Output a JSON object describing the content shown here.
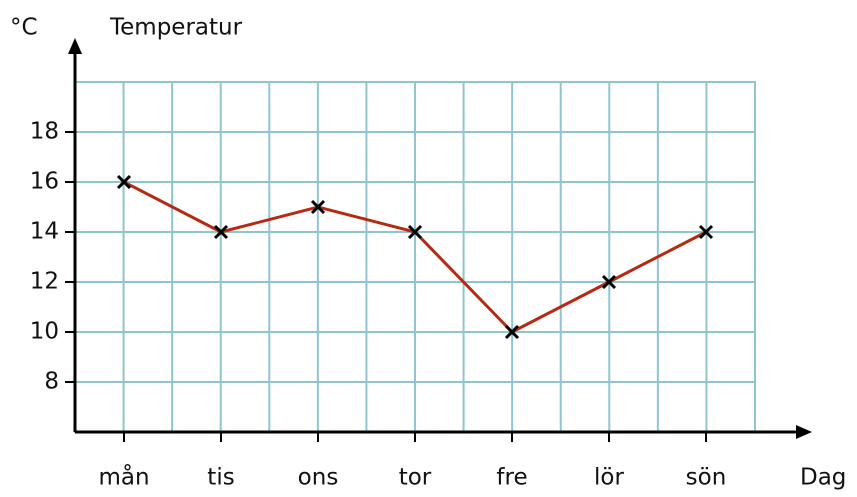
{
  "chart_data": {
    "type": "line",
    "title": "Temperatur",
    "y_label": "°C",
    "x_label": "Dag",
    "categories": [
      "mån",
      "tis",
      "ons",
      "tor",
      "fre",
      "lör",
      "sön"
    ],
    "series": [
      {
        "name": "Temperatur",
        "color": "#b52a12",
        "values": [
          16,
          14,
          15,
          14,
          10,
          12,
          14
        ]
      }
    ],
    "ylim": [
      6,
      20
    ],
    "yticks": [
      8,
      10,
      12,
      14,
      16,
      18
    ],
    "grid": true,
    "grid_color": "#8ec5cf"
  }
}
